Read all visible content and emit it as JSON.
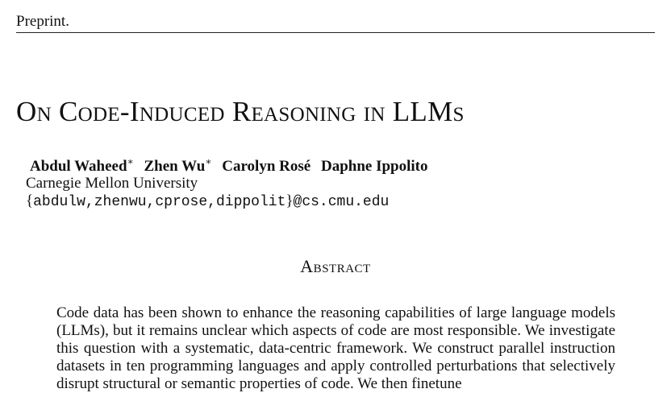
{
  "header": {
    "label": "Preprint."
  },
  "paper": {
    "title": "On Code-Induced Reasoning in LLMs",
    "authors": [
      {
        "name": "Abdul Waheed",
        "mark": "∗"
      },
      {
        "name": "Zhen Wu",
        "mark": "∗"
      },
      {
        "name": "Carolyn Rosé",
        "mark": ""
      },
      {
        "name": "Daphne Ippolito",
        "mark": ""
      }
    ],
    "affiliation": "Carnegie Mellon University",
    "email": {
      "open_brace": "{",
      "users": "abdulw,zhenwu,cprose,dippolit",
      "close_brace": "}",
      "domain": "@cs.cmu.edu"
    }
  },
  "abstract": {
    "heading": "Abstract",
    "text": "Code data has been shown to enhance the reasoning capabilities of large language models (LLMs), but it remains unclear which aspects of code are most responsible. We investigate this question with a systematic, data-centric framework. We construct parallel instruction datasets in ten programming languages and apply controlled perturbations that selectively disrupt structural or semantic properties of code. We then finetune"
  }
}
